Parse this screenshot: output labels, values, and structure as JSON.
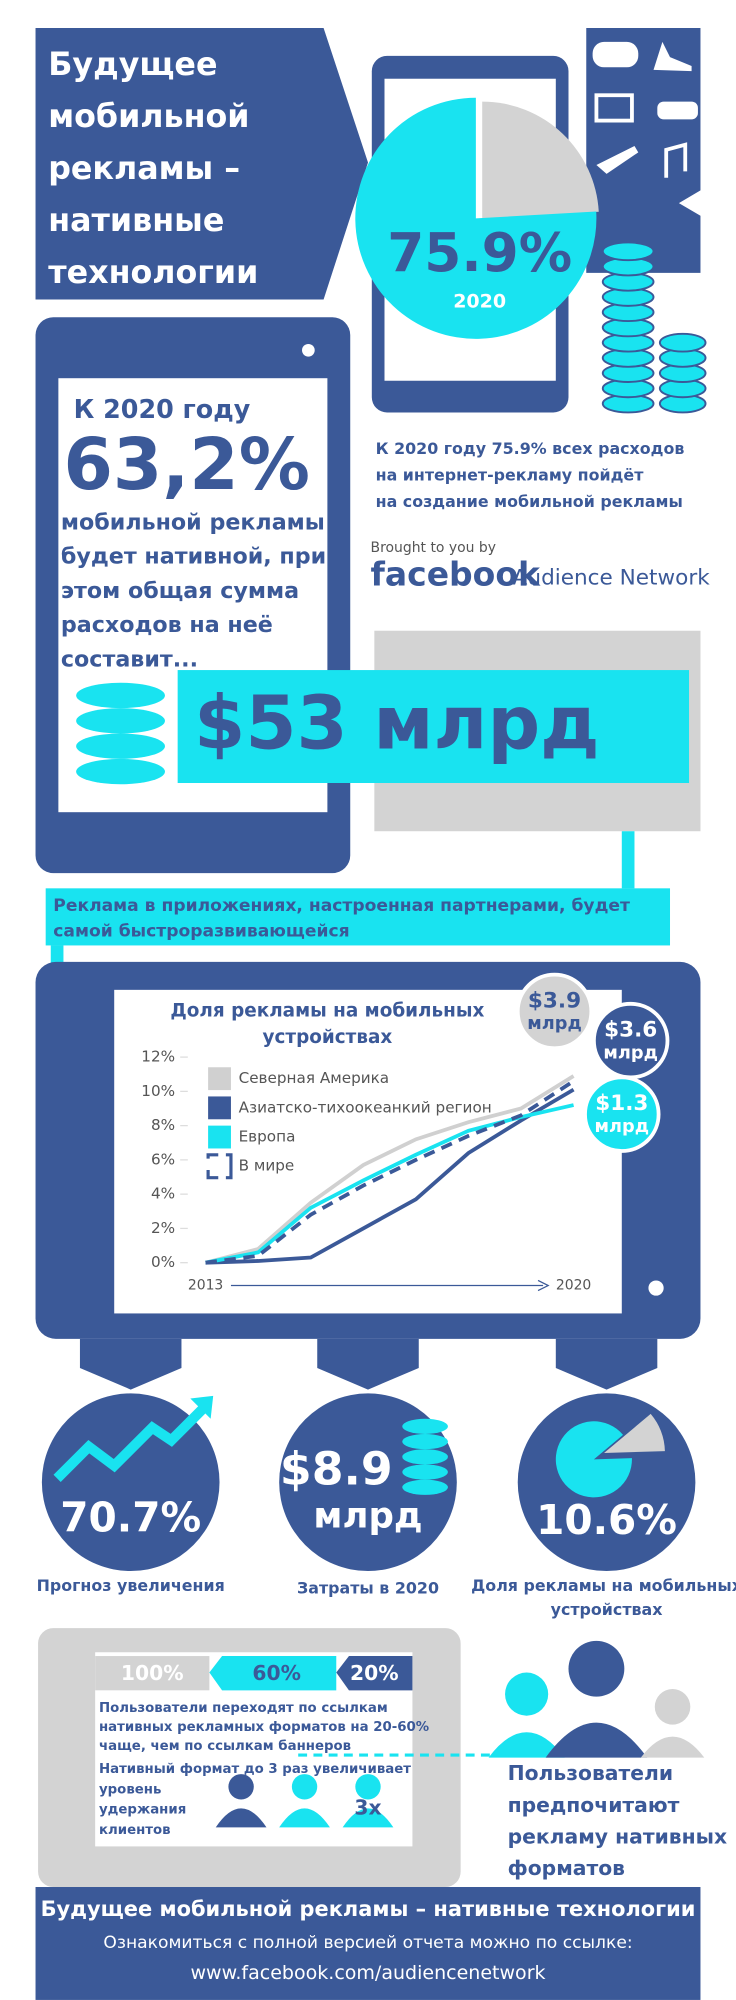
{
  "title_lines": [
    "Будущее",
    "мобильной",
    "рекламы –",
    "нативные",
    "технологии"
  ],
  "share_2020": {
    "value": 75.9,
    "label": "75.9%",
    "year": "2020"
  },
  "share_caption": [
    "К 2020 году 75.9% всех расходов",
    "на интернет-рекламу пойдёт",
    "на создание мобильной рекламы"
  ],
  "brand": {
    "intro": "Brought to you by",
    "logo": "facebook",
    "product": "Audience Network"
  },
  "native": {
    "lead": "К 2020 году",
    "percent": "63,2%",
    "lines": [
      "мобильной рекламы",
      "будет нативной, при",
      "этом общая сумма",
      "расходов на неё",
      "составит..."
    ],
    "amount": "$53 млрд"
  },
  "banner": [
    "Реклама в приложениях, настроенная партнерами, будет",
    "самой быстроразвивающейся"
  ],
  "chart_data": {
    "type": "line",
    "title": [
      "Доля рекламы на мобильных",
      "устройствах"
    ],
    "x": [
      2013,
      2014,
      2015,
      2016,
      2017,
      2018,
      2019,
      2020
    ],
    "xlim": [
      2013,
      2020
    ],
    "xticks": [
      2013,
      2020
    ],
    "ylim": [
      0,
      12
    ],
    "yticks": [
      {
        "value": 0,
        "label": "0%"
      },
      {
        "value": 2,
        "label": "2%"
      },
      {
        "value": 4,
        "label": "4%"
      },
      {
        "value": 6,
        "label": "6%"
      },
      {
        "value": 8,
        "label": "8%"
      },
      {
        "value": 10,
        "label": "10%"
      },
      {
        "value": 12,
        "label": "12%"
      }
    ],
    "series": [
      {
        "name": "Северная Америка",
        "color": "#d0d0d0",
        "values": [
          0,
          0.8,
          3.5,
          5.7,
          7.2,
          8.2,
          9.0,
          10.9
        ]
      },
      {
        "name": "Азиатско-тихоокеанкий регион",
        "color": "#3b5998",
        "values": [
          0,
          0.1,
          0.3,
          2.0,
          3.7,
          6.4,
          8.3,
          10.1
        ]
      },
      {
        "name": "Европа",
        "color": "#19e3f0",
        "values": [
          0,
          0.6,
          3.2,
          4.8,
          6.3,
          7.7,
          8.5,
          9.2
        ]
      },
      {
        "name": "В мире",
        "color": "#3b5998",
        "dashed": true,
        "values": [
          0,
          0.4,
          2.8,
          4.5,
          6.0,
          7.4,
          8.6,
          10.6
        ]
      }
    ],
    "annotations": [
      {
        "amount": "$3.9",
        "unit": "млрд"
      },
      {
        "amount": "$3.6",
        "unit": "млрд"
      },
      {
        "amount": "$1.3",
        "unit": "млрд"
      }
    ]
  },
  "stats": [
    {
      "text": "70.7%",
      "caption": "Прогноз увеличения"
    },
    {
      "amount": "$8.9",
      "unit": "млрд",
      "caption": "Затраты в 2020"
    },
    {
      "value": 10.6,
      "label": "10.6%",
      "caption_lines": [
        "Доля рекламы на мобильных",
        "устройствах"
      ]
    }
  ],
  "preference": {
    "steps": [
      "100%",
      "60%",
      "20%"
    ],
    "click_lines": [
      "Пользователи переходят по ссылкам",
      "нативных рекламных форматов на 20-60%",
      "чаще, чем по ссылкам баннеров"
    ],
    "retention_lines": [
      "Нативный формат до 3 раз увеличивает",
      "уровень",
      "удержания",
      "клиентов"
    ],
    "multiplier": "3x",
    "headline_lines": [
      "Пользователи",
      "предпочитают",
      "рекламу нативных",
      "форматов"
    ]
  },
  "footer": {
    "title": "Будущее мобильной рекламы – нативные технологии",
    "note": "Ознакомиться с полной версией отчета можно по ссылке:",
    "url": "www.facebook.com/audiencenetwork"
  }
}
